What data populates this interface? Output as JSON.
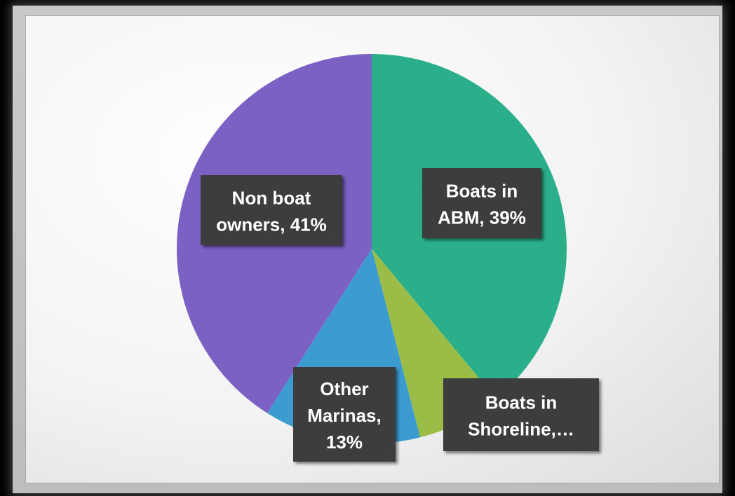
{
  "chart_data": {
    "type": "pie",
    "title": "",
    "start_angle_deg": 0,
    "direction": "clockwise",
    "slices": [
      {
        "name": "Boats in ABM",
        "value": 39,
        "label_lines": [
          "Boats in",
          "ABM, 39%"
        ],
        "color": "#2aaf8a"
      },
      {
        "name": "Boats in Shoreline",
        "value": 7,
        "label_lines": [
          "Boats in",
          "Shoreline,…"
        ],
        "color": "#9bbd47"
      },
      {
        "name": "Other Marinas",
        "value": 13,
        "label_lines": [
          "Other",
          "Marinas,",
          "13%"
        ],
        "color": "#3c9cd0"
      },
      {
        "name": "Non boat owners",
        "value": 41,
        "label_lines": [
          "Non boat",
          "owners, 41%"
        ],
        "color": "#7b61c4"
      }
    ],
    "label_box_color": "#3a3a3a",
    "legend": "none"
  }
}
